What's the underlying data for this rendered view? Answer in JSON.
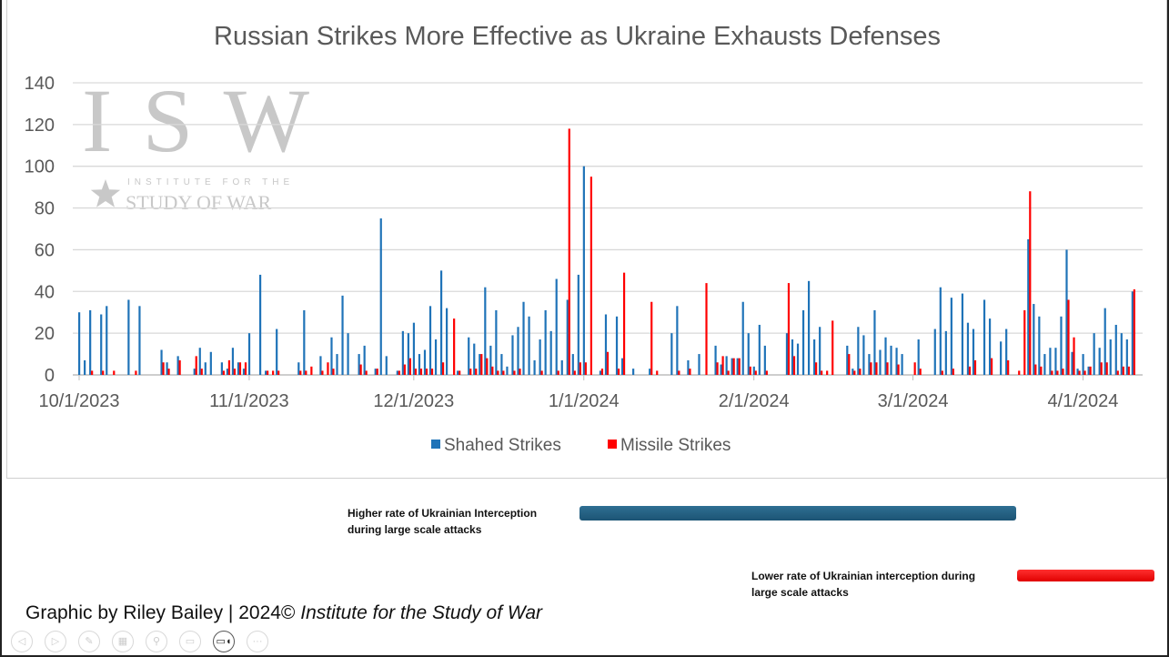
{
  "chart_data": {
    "type": "bar",
    "title": "Russian Strikes More Effective as Ukraine Exhausts Defenses",
    "xlabel": "",
    "ylabel": "",
    "ylim": [
      0,
      140
    ],
    "yticks": [
      "0",
      "20",
      "40",
      "60",
      "80",
      "100",
      "120",
      "140"
    ],
    "xlim": [
      "10/1/2023",
      "4/10/2024"
    ],
    "xticks": [
      "10/1/2023",
      "11/1/2023",
      "12/1/2023",
      "1/1/2024",
      "2/1/2024",
      "3/1/2024",
      "4/1/2024"
    ],
    "grid": true,
    "legend_position": "bottom",
    "series": [
      {
        "name": "Shahed Strikes",
        "color": "#1f73b8"
      },
      {
        "name": "Missile Strikes",
        "color": "#ff0000"
      }
    ],
    "columns": [
      "date",
      "Shahed Strikes",
      "Missile Strikes"
    ],
    "points": [
      [
        "10/1/2023",
        30,
        0
      ],
      [
        "10/2/2023",
        7,
        0
      ],
      [
        "10/3/2023",
        31,
        2
      ],
      [
        "10/5/2023",
        29,
        2
      ],
      [
        "10/6/2023",
        33,
        0
      ],
      [
        "10/7/2023",
        0,
        2
      ],
      [
        "10/10/2023",
        36,
        0
      ],
      [
        "10/11/2023",
        0,
        2
      ],
      [
        "10/12/2023",
        33,
        0
      ],
      [
        "10/16/2023",
        12,
        6
      ],
      [
        "10/17/2023",
        6,
        3
      ],
      [
        "10/19/2023",
        9,
        7
      ],
      [
        "10/22/2023",
        3,
        9
      ],
      [
        "10/23/2023",
        13,
        3
      ],
      [
        "10/24/2023",
        6,
        0
      ],
      [
        "10/25/2023",
        11,
        0
      ],
      [
        "10/27/2023",
        6,
        2
      ],
      [
        "10/28/2023",
        3,
        7
      ],
      [
        "10/29/2023",
        13,
        3
      ],
      [
        "10/30/2023",
        6,
        6
      ],
      [
        "10/31/2023",
        3,
        6
      ],
      [
        "11/1/2023",
        20,
        0
      ],
      [
        "11/3/2023",
        48,
        0
      ],
      [
        "11/4/2023",
        2,
        2
      ],
      [
        "11/5/2023",
        0,
        2
      ],
      [
        "11/6/2023",
        22,
        2
      ],
      [
        "11/10/2023",
        6,
        2
      ],
      [
        "11/11/2023",
        31,
        2
      ],
      [
        "11/12/2023",
        0,
        4
      ],
      [
        "11/14/2023",
        9,
        2
      ],
      [
        "11/15/2023",
        0,
        6
      ],
      [
        "11/16/2023",
        18,
        3
      ],
      [
        "11/17/2023",
        10,
        0
      ],
      [
        "11/18/2023",
        38,
        0
      ],
      [
        "11/19/2023",
        20,
        0
      ],
      [
        "11/21/2023",
        10,
        5
      ],
      [
        "11/22/2023",
        14,
        2
      ],
      [
        "11/24/2023",
        3,
        3
      ],
      [
        "11/25/2023",
        75,
        0
      ],
      [
        "11/26/2023",
        9,
        0
      ],
      [
        "11/28/2023",
        2,
        2
      ],
      [
        "11/29/2023",
        21,
        5
      ],
      [
        "11/30/2023",
        20,
        8
      ],
      [
        "12/1/2023",
        25,
        3
      ],
      [
        "12/2/2023",
        10,
        3
      ],
      [
        "12/3/2023",
        12,
        3
      ],
      [
        "12/4/2023",
        33,
        3
      ],
      [
        "12/5/2023",
        17,
        0
      ],
      [
        "12/6/2023",
        50,
        6
      ],
      [
        "12/7/2023",
        32,
        0
      ],
      [
        "12/8/2023",
        0,
        27
      ],
      [
        "12/9/2023",
        2,
        2
      ],
      [
        "12/11/2023",
        18,
        3
      ],
      [
        "12/12/2023",
        15,
        3
      ],
      [
        "12/13/2023",
        10,
        10
      ],
      [
        "12/14/2023",
        42,
        8
      ],
      [
        "12/15/2023",
        14,
        4
      ],
      [
        "12/16/2023",
        31,
        2
      ],
      [
        "12/17/2023",
        10,
        2
      ],
      [
        "12/18/2023",
        4,
        0
      ],
      [
        "12/19/2023",
        19,
        2
      ],
      [
        "12/20/2023",
        23,
        3
      ],
      [
        "12/21/2023",
        35,
        0
      ],
      [
        "12/22/2023",
        28,
        0
      ],
      [
        "12/23/2023",
        7,
        0
      ],
      [
        "12/24/2023",
        17,
        2
      ],
      [
        "12/25/2023",
        31,
        0
      ],
      [
        "12/26/2023",
        21,
        0
      ],
      [
        "12/27/2023",
        46,
        2
      ],
      [
        "12/28/2023",
        7,
        0
      ],
      [
        "12/29/2023",
        36,
        118
      ],
      [
        "12/30/2023",
        10,
        2
      ],
      [
        "12/31/2023",
        48,
        6
      ],
      [
        "1/1/2024",
        100,
        6
      ],
      [
        "1/2/2024",
        0,
        95
      ],
      [
        "1/4/2024",
        2,
        3
      ],
      [
        "1/5/2024",
        29,
        11
      ],
      [
        "1/7/2024",
        28,
        3
      ],
      [
        "1/8/2024",
        8,
        49
      ],
      [
        "1/10/2024",
        3,
        0
      ],
      [
        "1/13/2024",
        3,
        35
      ],
      [
        "1/14/2024",
        0,
        2
      ],
      [
        "1/17/2024",
        20,
        0
      ],
      [
        "1/18/2024",
        33,
        2
      ],
      [
        "1/20/2024",
        7,
        3
      ],
      [
        "1/22/2024",
        10,
        0
      ],
      [
        "1/23/2024",
        0,
        44
      ],
      [
        "1/25/2024",
        14,
        6
      ],
      [
        "1/26/2024",
        5,
        9
      ],
      [
        "1/27/2024",
        9,
        2
      ],
      [
        "1/28/2024",
        8,
        8
      ],
      [
        "1/29/2024",
        8,
        8
      ],
      [
        "1/30/2024",
        35,
        0
      ],
      [
        "1/31/2024",
        20,
        4
      ],
      [
        "2/1/2024",
        4,
        2
      ],
      [
        "2/2/2024",
        24,
        0
      ],
      [
        "2/3/2024",
        14,
        2
      ],
      [
        "2/7/2024",
        20,
        44
      ],
      [
        "2/8/2024",
        17,
        9
      ],
      [
        "2/9/2024",
        15,
        0
      ],
      [
        "2/10/2024",
        31,
        0
      ],
      [
        "2/11/2024",
        45,
        0
      ],
      [
        "2/12/2024",
        17,
        6
      ],
      [
        "2/13/2024",
        23,
        2
      ],
      [
        "2/14/2024",
        0,
        2
      ],
      [
        "2/15/2024",
        0,
        26
      ],
      [
        "2/18/2024",
        14,
        10
      ],
      [
        "2/19/2024",
        3,
        2
      ],
      [
        "2/20/2024",
        23,
        3
      ],
      [
        "2/21/2024",
        19,
        0
      ],
      [
        "2/22/2024",
        10,
        6
      ],
      [
        "2/23/2024",
        31,
        6
      ],
      [
        "2/24/2024",
        12,
        0
      ],
      [
        "2/25/2024",
        18,
        6
      ],
      [
        "2/26/2024",
        14,
        0
      ],
      [
        "2/27/2024",
        13,
        5
      ],
      [
        "2/28/2024",
        10,
        0
      ],
      [
        "3/1/2024",
        0,
        6
      ],
      [
        "3/2/2024",
        17,
        3
      ],
      [
        "3/5/2024",
        22,
        0
      ],
      [
        "3/6/2024",
        42,
        2
      ],
      [
        "3/7/2024",
        21,
        0
      ],
      [
        "3/8/2024",
        37,
        3
      ],
      [
        "3/10/2024",
        39,
        0
      ],
      [
        "3/11/2024",
        25,
        4
      ],
      [
        "3/12/2024",
        22,
        7
      ],
      [
        "3/14/2024",
        36,
        0
      ],
      [
        "3/15/2024",
        27,
        8
      ],
      [
        "3/17/2024",
        16,
        0
      ],
      [
        "3/18/2024",
        22,
        7
      ],
      [
        "3/20/2024",
        0,
        2
      ],
      [
        "3/21/2024",
        0,
        31
      ],
      [
        "3/22/2024",
        65,
        88
      ],
      [
        "3/23/2024",
        34,
        5
      ],
      [
        "3/24/2024",
        28,
        4
      ],
      [
        "3/25/2024",
        10,
        0
      ],
      [
        "3/26/2024",
        13,
        2
      ],
      [
        "3/27/2024",
        13,
        2
      ],
      [
        "3/28/2024",
        28,
        3
      ],
      [
        "3/29/2024",
        60,
        36
      ],
      [
        "3/30/2024",
        11,
        18
      ],
      [
        "3/31/2024",
        3,
        2
      ],
      [
        "4/1/2024",
        10,
        2
      ],
      [
        "4/2/2024",
        4,
        4
      ],
      [
        "4/3/2024",
        20,
        0
      ],
      [
        "4/4/2024",
        13,
        6
      ],
      [
        "4/5/2024",
        32,
        6
      ],
      [
        "4/6/2024",
        17,
        0
      ],
      [
        "4/7/2024",
        24,
        2
      ],
      [
        "4/8/2024",
        20,
        4
      ],
      [
        "4/9/2024",
        17,
        4
      ],
      [
        "4/10/2024",
        40,
        41
      ]
    ]
  },
  "watermark": {
    "logo": "ISW",
    "line1": "INSTITUTE FOR THE",
    "line2": "STUDY OF WAR"
  },
  "annotations": {
    "high": {
      "line1": "Higher rate of Ukrainian Interception",
      "line2": "during large scale attacks",
      "color": "#1f5a7a"
    },
    "low": {
      "line1": "Lower rate of Ukrainian interception during",
      "line2": "large scale attacks",
      "color": "#ff1a1a"
    }
  },
  "credit": {
    "prefix": "Graphic by Riley Bailey | 2024©",
    "org": "Institute for the Study of War"
  },
  "toolbar": {
    "items": [
      "previous-slide",
      "next-slide",
      "pen",
      "slides",
      "zoom",
      "subtitles",
      "camera",
      "more"
    ]
  }
}
